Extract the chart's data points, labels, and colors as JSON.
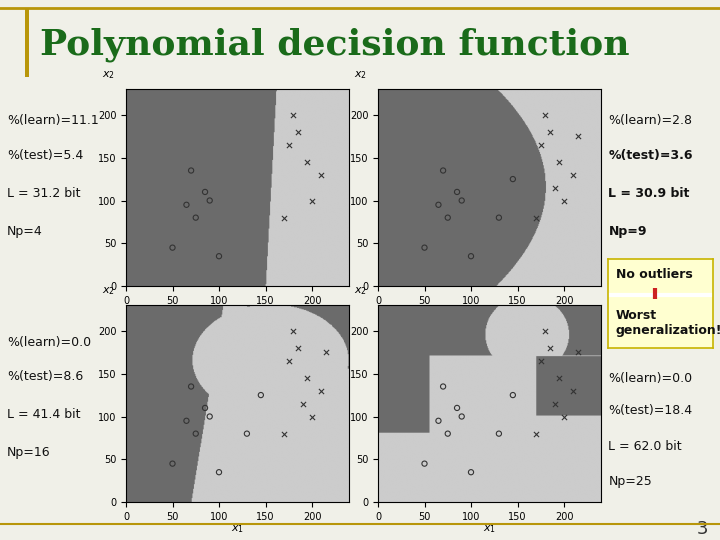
{
  "title": "Polynomial decision function",
  "title_color": "#1a6b1a",
  "bg_color": "#f0f0e8",
  "plots": [
    {
      "learn": "%(learn)=11.1",
      "test": "%(test)=5.4",
      "L": "L = 31.2 bit",
      "Np": "Np=4",
      "bold_test": false
    },
    {
      "learn": "%(learn)=2.8",
      "test": "%(test)=3.6",
      "L": "L = 30.9 bit",
      "Np": "Np=9",
      "bold_test": true
    },
    {
      "learn": "%(learn)=0.0",
      "test": "%(test)=8.6",
      "L": "L = 41.4 bit",
      "Np": "Np=16",
      "bold_test": false
    },
    {
      "learn": "%(learn)=0.0",
      "test": "%(test)=18.4",
      "L": "L = 62.0 bit",
      "Np": "Np=25",
      "bold_test": false
    }
  ],
  "dark_gray": [
    0.42,
    0.42,
    0.42
  ],
  "light_gray": [
    0.8,
    0.8,
    0.8
  ],
  "annotation_box_color": "#ffffd0",
  "no_outliers_text": "No outliers",
  "worst_gen_text": "Worst\ngeneralization!",
  "marker_color": "#333333",
  "slide_number": "3",
  "gold_color": "#b8960a",
  "border_color": "#c8b400"
}
